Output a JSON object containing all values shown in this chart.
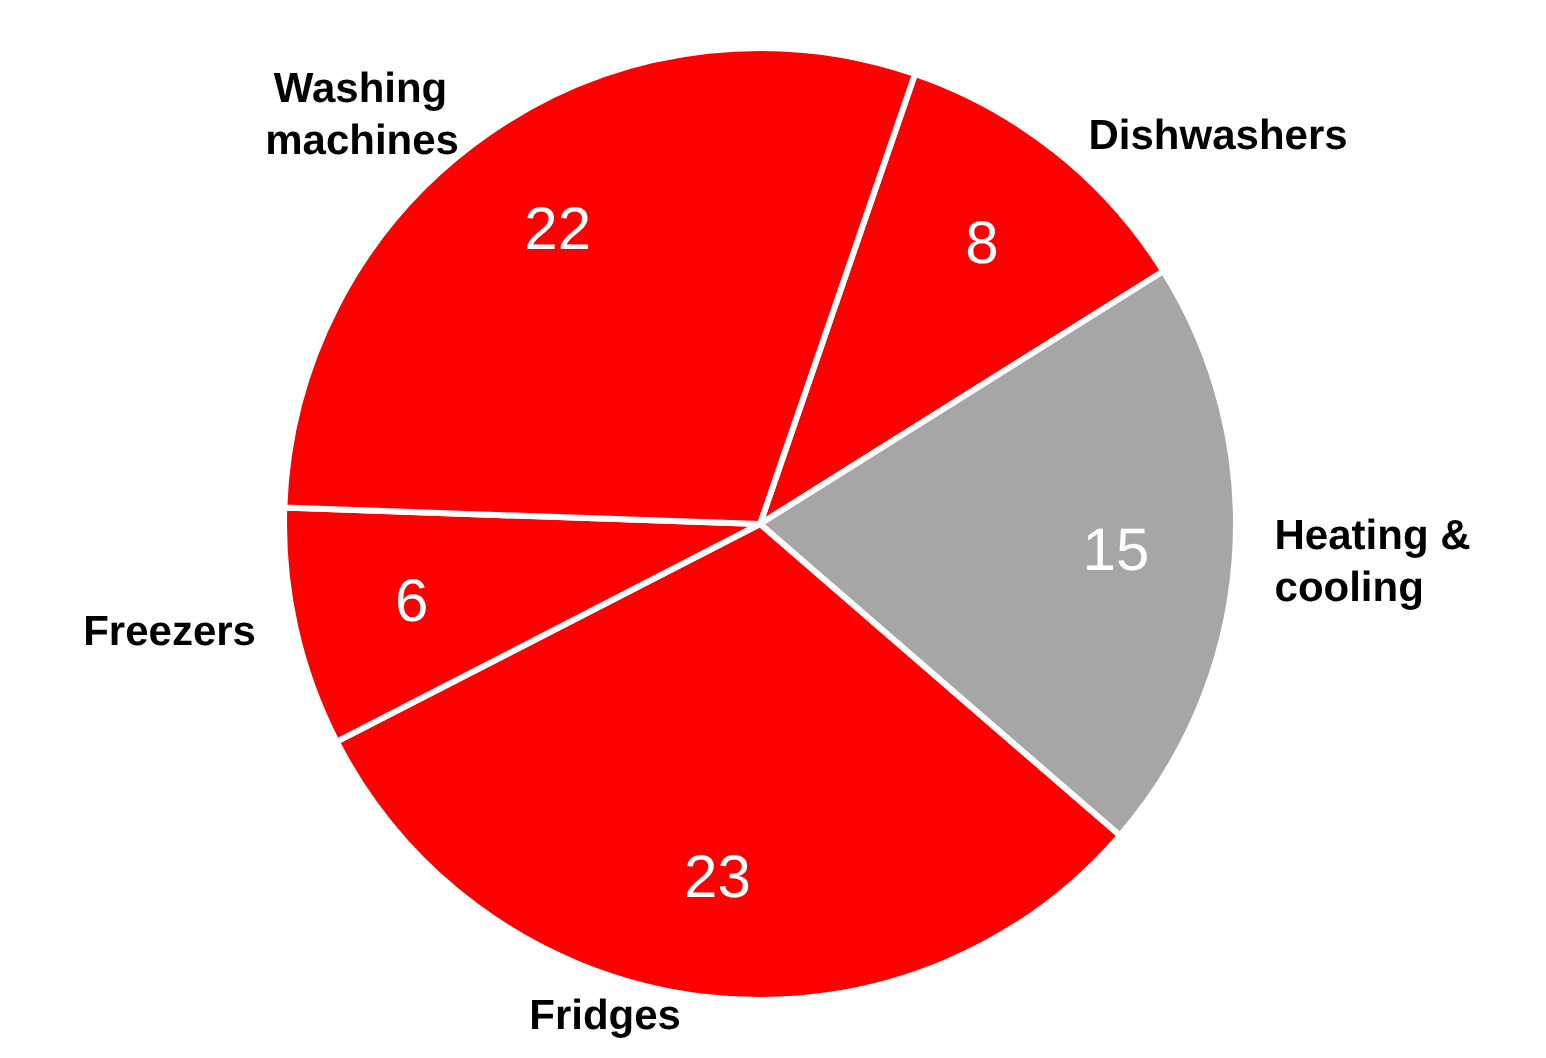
{
  "chart_data": {
    "type": "pie",
    "categories": [
      "Dishwashers",
      "Heating & cooling",
      "Fridges",
      "Freezers",
      "Washing machines"
    ],
    "values": [
      8,
      15,
      23,
      6,
      22
    ],
    "colors": [
      "#ff0000",
      "#a6a6a6",
      "#ff0000",
      "#ff0000",
      "#ff0000"
    ],
    "data_labels": true
  }
}
